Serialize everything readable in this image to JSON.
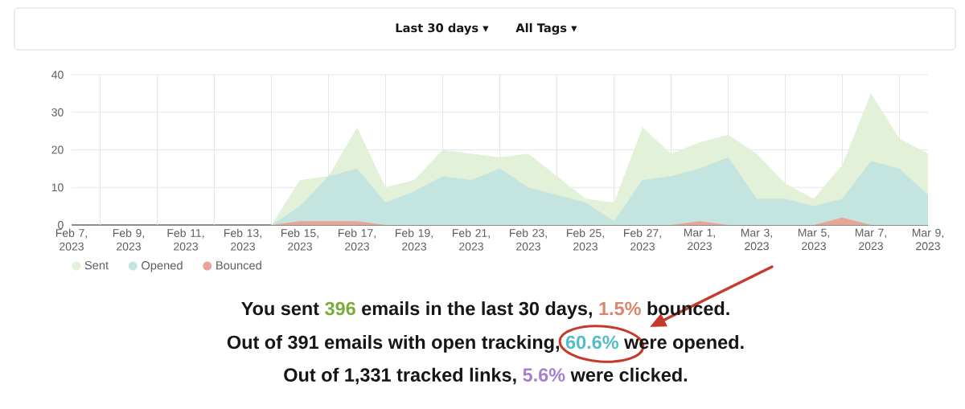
{
  "chart_data": {
    "type": "area",
    "annotations": [
      "Last 30 days ▾",
      "All Tags ▾",
      "You sent",
      "396",
      "emails in the last 30 days,",
      "1.5%",
      "bounced.",
      "Out of 391 emails with open tracking,",
      "60.6%",
      "were opened.",
      "Out of 1,331 tracked links,",
      "5.6%",
      "were clicked."
    ],
    "x": [
      "2023-02-07",
      "2023-02-08",
      "2023-02-09",
      "2023-02-10",
      "2023-02-11",
      "2023-02-12",
      "2023-02-13",
      "2023-02-14",
      "2023-02-15",
      "2023-02-16",
      "2023-02-17",
      "2023-02-18",
      "2023-02-19",
      "2023-02-20",
      "2023-02-21",
      "2023-02-22",
      "2023-02-23",
      "2023-02-24",
      "2023-02-25",
      "2023-02-26",
      "2023-02-27",
      "2023-02-28",
      "2023-03-01",
      "2023-03-02",
      "2023-03-03",
      "2023-03-04",
      "2023-03-05",
      "2023-03-06",
      "2023-03-07",
      "2023-03-08",
      "2023-03-09"
    ],
    "series": [
      {
        "name": "Sent",
        "color": "#e2f1d8",
        "values": [
          0,
          0,
          0,
          0,
          0,
          0,
          0,
          0,
          12,
          13,
          26,
          10,
          12,
          20,
          19,
          18,
          19,
          13,
          7,
          6,
          26,
          19,
          22,
          24,
          19,
          11,
          7,
          16,
          35,
          23,
          19
        ]
      },
      {
        "name": "Opened",
        "color": "#c4e4e0",
        "values": [
          0,
          0,
          0,
          0,
          0,
          0,
          0,
          0,
          5,
          13,
          15,
          6,
          9,
          13,
          12,
          15,
          10,
          8,
          6,
          1,
          12,
          13,
          15,
          18,
          7,
          7,
          5,
          7,
          17,
          15,
          8
        ]
      },
      {
        "name": "Bounced",
        "color": "#e6a597",
        "values": [
          0,
          0,
          0,
          0,
          0,
          0,
          0,
          0,
          1,
          1,
          1,
          0,
          0,
          0,
          0,
          0,
          0,
          0,
          0,
          0,
          0,
          0,
          1,
          0,
          0,
          0,
          0,
          2,
          0,
          0,
          0
        ]
      }
    ],
    "xlim": [
      "2023-02-07",
      "2023-03-09"
    ],
    "xticks": [
      {
        "value": "2023-02-07",
        "label": "Feb 7, 2023"
      },
      {
        "value": "2023-02-08",
        "label": null
      },
      {
        "value": "2023-02-09",
        "label": "Feb 9, 2023"
      },
      {
        "value": "2023-02-10",
        "label": null
      },
      {
        "value": "2023-02-11",
        "label": "Feb 11, 2023"
      },
      {
        "value": "2023-02-12",
        "label": null
      },
      {
        "value": "2023-02-13",
        "label": "Feb 13, 2023"
      },
      {
        "value": "2023-02-14",
        "label": null
      },
      {
        "value": "2023-02-15",
        "label": "Feb 15, 2023"
      },
      {
        "value": "2023-02-16",
        "label": null
      },
      {
        "value": "2023-02-17",
        "label": "Feb 17, 2023"
      },
      {
        "value": "2023-02-18",
        "label": null
      },
      {
        "value": "2023-02-19",
        "label": "Feb 19, 2023"
      },
      {
        "value": "2023-02-20",
        "label": null
      },
      {
        "value": "2023-02-21",
        "label": "Feb 21, 2023"
      },
      {
        "value": "2023-02-22",
        "label": null
      },
      {
        "value": "2023-02-23",
        "label": "Feb 23, 2023"
      },
      {
        "value": "2023-02-24",
        "label": null
      },
      {
        "value": "2023-02-25",
        "label": "Feb 25, 2023"
      },
      {
        "value": "2023-02-26",
        "label": null
      },
      {
        "value": "2023-02-27",
        "label": "Feb 27, 2023"
      },
      {
        "value": "2023-02-28",
        "label": null
      },
      {
        "value": "2023-03-01",
        "label": "Mar 1, 2023"
      },
      {
        "value": "2023-03-02",
        "label": null
      },
      {
        "value": "2023-03-03",
        "label": "Mar 3, 2023"
      },
      {
        "value": "2023-03-04",
        "label": null
      },
      {
        "value": "2023-03-05",
        "label": "Mar 5, 2023"
      },
      {
        "value": "2023-03-06",
        "label": null
      },
      {
        "value": "2023-03-07",
        "label": "Mar 7, 2023"
      },
      {
        "value": "2023-03-08",
        "label": null
      },
      {
        "value": "2023-03-09",
        "label": "Mar 9, 2023"
      }
    ],
    "ylim": [
      0,
      40
    ],
    "yticks": [
      0,
      10,
      20,
      30,
      40
    ],
    "grid": true,
    "legend": "bottom left"
  }
}
